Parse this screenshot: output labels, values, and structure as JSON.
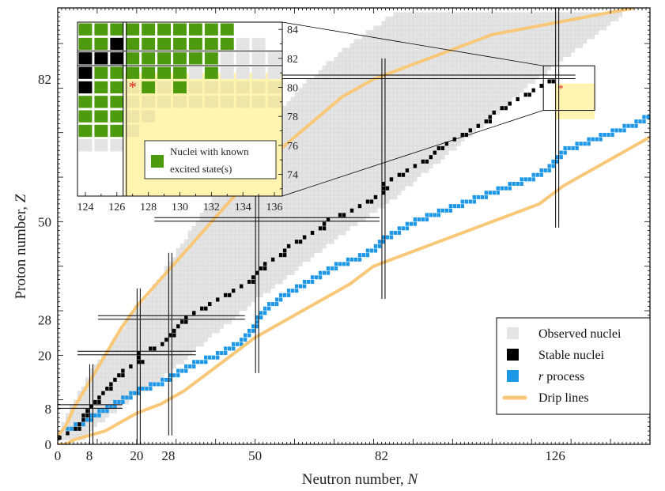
{
  "chart_data": {
    "type": "scatter",
    "xlabel": "Neutron number, ",
    "xlabel_var": "N",
    "ylabel": "Proton number, ",
    "ylabel_var": "Z",
    "xlim": [
      0,
      150
    ],
    "ylim": [
      0,
      98
    ],
    "x_ticks": [
      0,
      8,
      20,
      28,
      50,
      82,
      126
    ],
    "y_ticks": [
      0,
      8,
      20,
      28,
      50,
      82
    ],
    "magic_numbers": [
      8,
      20,
      28,
      50,
      82,
      126
    ],
    "legend": {
      "placement": "bottom-right",
      "entries": [
        {
          "label": "Observed nuclei",
          "color": "#e4e4e4"
        },
        {
          "label": "Stable nuclei",
          "color": "#000000"
        },
        {
          "label": " process",
          "italic_prefix": "r",
          "color": "#1e98e6"
        },
        {
          "label": "Drip lines",
          "color": "#f8c878"
        }
      ]
    },
    "colors": {
      "observed": "#e4e4e4",
      "stable": "#000000",
      "r_process": "#1e98e6",
      "drip": "#f8c878",
      "highlight_region": "#fff5b0",
      "known_excited": "#4e9a0e",
      "marker": "#e02020"
    },
    "series": [
      {
        "name": "Drip lines",
        "lower_drip": [
          [
            0,
            0
          ],
          [
            2,
            0
          ],
          [
            4,
            1
          ],
          [
            8,
            2
          ],
          [
            12,
            3
          ],
          [
            16,
            5
          ],
          [
            20,
            7
          ],
          [
            26,
            9
          ],
          [
            32,
            12
          ],
          [
            38,
            16
          ],
          [
            44,
            20
          ],
          [
            50,
            24
          ],
          [
            56,
            27
          ],
          [
            62,
            30
          ],
          [
            68,
            33
          ],
          [
            74,
            36
          ],
          [
            80,
            40
          ],
          [
            86,
            42
          ],
          [
            92,
            44
          ],
          [
            98,
            46
          ],
          [
            104,
            48
          ],
          [
            110,
            50
          ],
          [
            116,
            52
          ],
          [
            122,
            54
          ],
          [
            128,
            58
          ],
          [
            134,
            61
          ],
          [
            140,
            64
          ],
          [
            146,
            67
          ],
          [
            150,
            69
          ]
        ],
        "upper_drip": [
          [
            0,
            2
          ],
          [
            2,
            4
          ],
          [
            4,
            8
          ],
          [
            8,
            14
          ],
          [
            12,
            20
          ],
          [
            16,
            26
          ],
          [
            20,
            31
          ],
          [
            24,
            35
          ],
          [
            28,
            39
          ],
          [
            32,
            43
          ],
          [
            36,
            47
          ],
          [
            40,
            51
          ],
          [
            44,
            55
          ],
          [
            48,
            59
          ],
          [
            52,
            63
          ],
          [
            56,
            66
          ],
          [
            60,
            69
          ],
          [
            64,
            72
          ],
          [
            68,
            75
          ],
          [
            72,
            78
          ],
          [
            76,
            80
          ],
          [
            80,
            82
          ],
          [
            86,
            84
          ],
          [
            92,
            86
          ],
          [
            98,
            88
          ],
          [
            104,
            90
          ],
          [
            110,
            92
          ],
          [
            116,
            93
          ],
          [
            122,
            94
          ],
          [
            128,
            95
          ],
          [
            134,
            96
          ],
          [
            140,
            97
          ],
          [
            146,
            98
          ]
        ]
      },
      {
        "name": "Observed nuclei",
        "bands_z_nmin_nmax": [
          [
            1,
            0,
            6
          ],
          [
            4,
            1,
            9
          ],
          [
            8,
            3,
            15
          ],
          [
            12,
            6,
            21
          ],
          [
            16,
            8,
            28
          ],
          [
            20,
            12,
            33
          ],
          [
            24,
            15,
            38
          ],
          [
            28,
            18,
            44
          ],
          [
            32,
            22,
            49
          ],
          [
            36,
            25,
            56
          ],
          [
            40,
            28,
            61
          ],
          [
            44,
            31,
            67
          ],
          [
            48,
            34,
            73
          ],
          [
            52,
            37,
            80
          ],
          [
            56,
            40,
            86
          ],
          [
            60,
            44,
            91
          ],
          [
            64,
            47,
            97
          ],
          [
            68,
            51,
            102
          ],
          [
            72,
            54,
            108
          ],
          [
            76,
            58,
            113
          ],
          [
            80,
            62,
            118
          ],
          [
            84,
            67,
            124
          ],
          [
            88,
            72,
            130
          ],
          [
            92,
            78,
            136
          ],
          [
            96,
            85,
            142
          ]
        ]
      },
      {
        "name": "Stable nuclei",
        "valley_z_n": [
          [
            1,
            0
          ],
          [
            2,
            2
          ],
          [
            4,
            5
          ],
          [
            6,
            6
          ],
          [
            8,
            8
          ],
          [
            10,
            10
          ],
          [
            12,
            12
          ],
          [
            14,
            14
          ],
          [
            16,
            16
          ],
          [
            18,
            20
          ],
          [
            20,
            20
          ],
          [
            22,
            26
          ],
          [
            24,
            28
          ],
          [
            26,
            30
          ],
          [
            28,
            32
          ],
          [
            30,
            36
          ],
          [
            32,
            40
          ],
          [
            34,
            44
          ],
          [
            36,
            48
          ],
          [
            38,
            50
          ],
          [
            40,
            52
          ],
          [
            42,
            56
          ],
          [
            44,
            58
          ],
          [
            46,
            62
          ],
          [
            48,
            66
          ],
          [
            50,
            68
          ],
          [
            52,
            74
          ],
          [
            54,
            78
          ],
          [
            56,
            82
          ],
          [
            58,
            82
          ],
          [
            60,
            86
          ],
          [
            62,
            90
          ],
          [
            64,
            94
          ],
          [
            66,
            96
          ],
          [
            68,
            100
          ],
          [
            70,
            104
          ],
          [
            72,
            108
          ],
          [
            74,
            110
          ],
          [
            76,
            114
          ],
          [
            78,
            118
          ],
          [
            80,
            122
          ],
          [
            82,
            126
          ]
        ]
      },
      {
        "name": "r process",
        "path_z_n": [
          [
            3,
            2
          ],
          [
            6,
            8
          ],
          [
            9,
            14
          ],
          [
            12,
            20
          ],
          [
            14,
            26
          ],
          [
            16,
            30
          ],
          [
            18,
            34
          ],
          [
            20,
            40
          ],
          [
            22,
            44
          ],
          [
            24,
            47
          ],
          [
            26,
            49
          ],
          [
            28,
            50
          ],
          [
            30,
            52
          ],
          [
            33,
            56
          ],
          [
            36,
            62
          ],
          [
            38,
            66
          ],
          [
            40,
            70
          ],
          [
            42,
            76
          ],
          [
            44,
            80
          ],
          [
            46,
            82
          ],
          [
            48,
            86
          ],
          [
            50,
            90
          ],
          [
            52,
            96
          ],
          [
            54,
            102
          ],
          [
            56,
            108
          ],
          [
            58,
            114
          ],
          [
            60,
            120
          ],
          [
            62,
            124
          ],
          [
            64,
            126
          ],
          [
            66,
            128
          ],
          [
            68,
            134
          ],
          [
            70,
            140
          ],
          [
            72,
            146
          ],
          [
            74,
            150
          ]
        ]
      }
    ],
    "highlight_region": {
      "n_from": 126,
      "n_to": 136,
      "z_from": 73,
      "z_to": 81
    },
    "marker": {
      "n": 127,
      "z": 80,
      "symbol": "*"
    },
    "inset": {
      "x_ticks": [
        124,
        126,
        128,
        130,
        132,
        134,
        136
      ],
      "y_ticks": [
        74,
        76,
        78,
        80,
        82,
        84
      ],
      "xlim": [
        123.5,
        136.5
      ],
      "ylim": [
        72.5,
        84.5
      ],
      "zoom_box": {
        "n": [
          124,
          136
        ],
        "z": [
          75,
          85
        ]
      },
      "legend_label_line1": "Nuclei with known",
      "legend_label_line2": "excited state(s)",
      "cells": [
        {
          "z": 84,
          "n": [
            124,
            125,
            126,
            127,
            128,
            129,
            130,
            131,
            132,
            133
          ],
          "stable": [],
          "green": [
            124,
            125,
            126,
            127,
            128,
            129,
            130,
            131,
            132,
            133
          ]
        },
        {
          "z": 83,
          "n": [
            124,
            125,
            126,
            127,
            128,
            129,
            130,
            131,
            132,
            133,
            134,
            135
          ],
          "stable": [
            126
          ],
          "green": [
            124,
            125,
            127,
            128,
            129,
            130,
            131,
            132,
            133
          ]
        },
        {
          "z": 82,
          "n": [
            124,
            125,
            126,
            127,
            128,
            129,
            130,
            131,
            132,
            133,
            134,
            135,
            136
          ],
          "stable": [
            124,
            125,
            126
          ],
          "green": [
            127,
            128,
            129,
            130,
            131,
            132
          ]
        },
        {
          "z": 81,
          "n": [
            124,
            125,
            126,
            127,
            128,
            129,
            130,
            131,
            132,
            133,
            134,
            135,
            136
          ],
          "stable": [
            124
          ],
          "green": [
            125,
            126,
            127,
            128,
            129,
            130,
            132
          ]
        },
        {
          "z": 80,
          "n": [
            124,
            125,
            126,
            127,
            128,
            129,
            130,
            131,
            132,
            133,
            134,
            135,
            136
          ],
          "stable": [
            124
          ],
          "green": [
            125,
            126,
            128,
            130
          ]
        },
        {
          "z": 79,
          "n": [
            124,
            125,
            126,
            127,
            128,
            129,
            130,
            131,
            132,
            133,
            134,
            135,
            136
          ],
          "stable": [],
          "green": [
            124,
            125,
            126
          ]
        },
        {
          "z": 78,
          "n": [
            124,
            125,
            126,
            127,
            128
          ],
          "stable": [],
          "green": [
            124,
            125,
            126
          ]
        },
        {
          "z": 77,
          "n": [
            124,
            125,
            126,
            127
          ],
          "stable": [],
          "green": [
            124,
            125,
            126
          ]
        },
        {
          "z": 76,
          "n": [
            124,
            125,
            126
          ],
          "stable": [],
          "green": []
        }
      ]
    },
    "legend_italic_r": "r"
  }
}
